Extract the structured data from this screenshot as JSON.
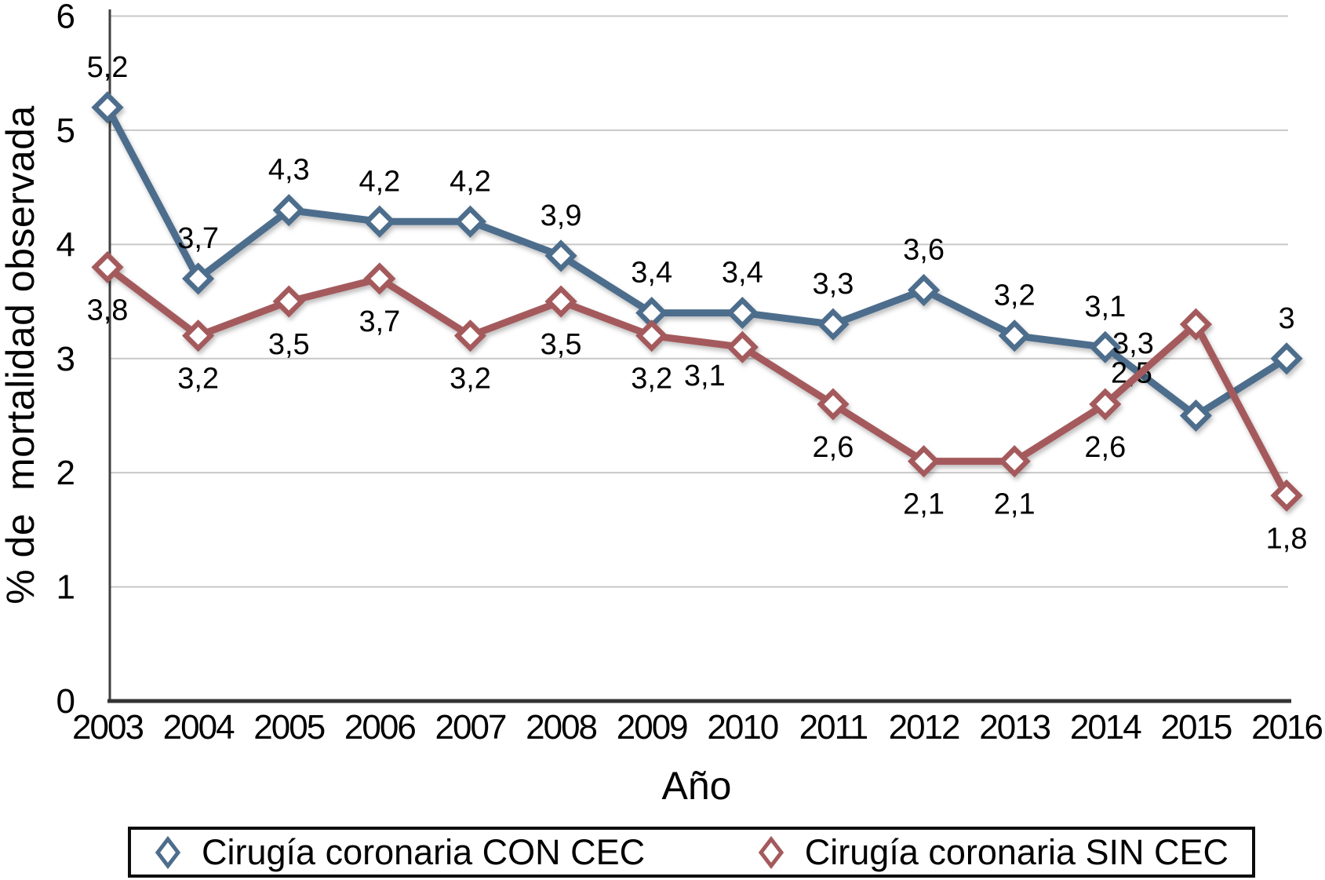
{
  "chart_data": {
    "type": "line",
    "xlabel": "Año",
    "ylabel": "% de  mortalidad observada",
    "x_categories": [
      "2003",
      "2004",
      "2005",
      "2006",
      "2007",
      "2008",
      "2009",
      "2010",
      "2011",
      "2012",
      "2013",
      "2014",
      "2015",
      "2016"
    ],
    "yticks": [
      "0",
      "1",
      "2",
      "3",
      "4",
      "5",
      "6"
    ],
    "ylim": [
      0,
      6
    ],
    "grid": "horizontal",
    "legend_position": "bottom",
    "decimal_separator": ",",
    "background_color": "#ffffff",
    "series": [
      {
        "name": "Cirugía coronaria CON CEC",
        "color": "#4e6d8c",
        "marker": "open-diamond",
        "values": [
          5.2,
          3.7,
          4.3,
          4.2,
          4.2,
          3.9,
          3.4,
          3.4,
          3.3,
          3.6,
          3.2,
          3.1,
          2.5,
          3
        ],
        "labels": [
          "5,2",
          "3,7",
          "4,3",
          "4,2",
          "4,2",
          "3,9",
          "3,4",
          "3,4",
          "3,3",
          "3,6",
          "3,2",
          "3,1",
          "2,5",
          "3"
        ],
        "label_default": "above",
        "label_overrides": {
          "12": "left-above"
        }
      },
      {
        "name": "Cirugía coronaria SIN CEC",
        "color": "#a45a5c",
        "marker": "open-diamond",
        "values": [
          3.8,
          3.2,
          3.5,
          3.7,
          3.2,
          3.5,
          3.2,
          3.1,
          2.6,
          2.1,
          2.1,
          2.6,
          3.3,
          1.8
        ],
        "labels": [
          "3,8",
          "3,2",
          "3,5",
          "3,7",
          "3,2",
          "3,5",
          "3,2",
          "3,1",
          "2,6",
          "2,1",
          "2,1",
          "2,6",
          "3,3",
          "1,8"
        ],
        "label_default": "below",
        "label_overrides": {
          "7": "below-left",
          "12": "left-below"
        }
      }
    ]
  }
}
